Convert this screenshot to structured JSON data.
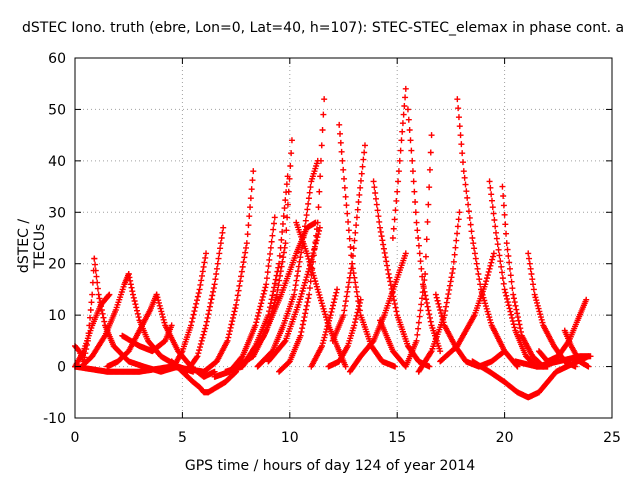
{
  "chart_data": {
    "type": "scatter",
    "title": "dSTEC Iono. truth (ebre, Lon=0, Lat=40, h=107): STEC-STEC_elemax in phase cont. a",
    "xlabel": "GPS time / hours of day 124 of year 2014",
    "ylabel": "dSTEC  / TECUs",
    "xlim": [
      0,
      25
    ],
    "ylim": [
      -10,
      60
    ],
    "xticks": [
      "0",
      "5",
      "10",
      "15",
      "20",
      "25"
    ],
    "yticks": [
      "-10",
      "0",
      "10",
      "20",
      "30",
      "40",
      "50",
      "60"
    ],
    "grid": true,
    "marker": "+",
    "color": "#ff0000",
    "series": [
      {
        "x": [
          0.0,
          0.2,
          0.4,
          0.6,
          0.8,
          0.9
        ],
        "y": [
          4,
          3,
          1,
          5,
          14,
          21
        ]
      },
      {
        "x": [
          0.9,
          1.1,
          1.4,
          1.8,
          2.5,
          3.2,
          4.0,
          4.8
        ],
        "y": [
          21,
          14,
          8,
          4,
          1,
          0,
          -1,
          0
        ]
      },
      {
        "x": [
          0.0,
          0.4,
          0.8,
          1.2,
          1.6
        ],
        "y": [
          0,
          3,
          8,
          12,
          14
        ]
      },
      {
        "x": [
          0.3,
          0.8,
          1.4,
          1.9,
          2.3,
          2.5
        ],
        "y": [
          0,
          2,
          6,
          11,
          16,
          18
        ]
      },
      {
        "x": [
          2.5,
          2.7,
          3.0,
          3.4,
          4.0,
          4.8,
          5.5
        ],
        "y": [
          18,
          14,
          9,
          5,
          2,
          0,
          -1
        ]
      },
      {
        "x": [
          1.5,
          2.0,
          2.5,
          3.0,
          3.5,
          3.8
        ],
        "y": [
          0,
          1,
          3,
          7,
          11,
          14
        ]
      },
      {
        "x": [
          3.8,
          4.2,
          4.8,
          5.4,
          6.0,
          6.5
        ],
        "y": [
          14,
          8,
          3,
          0,
          -2,
          -1
        ]
      },
      {
        "x": [
          2.2,
          3.0,
          3.6,
          4.2,
          4.5
        ],
        "y": [
          6,
          4,
          3,
          5,
          8
        ]
      },
      {
        "x": [
          4.5,
          5.0,
          5.5,
          5.8,
          6.0,
          6.2
        ],
        "y": [
          1,
          -1,
          -3,
          -4,
          -5,
          -5
        ]
      },
      {
        "x": [
          6.2,
          6.6,
          7.0,
          7.5
        ],
        "y": [
          -5,
          -4,
          -3,
          -1
        ]
      },
      {
        "x": [
          4.6,
          5.0,
          5.4,
          5.8,
          6.1
        ],
        "y": [
          0,
          3,
          8,
          15,
          22
        ]
      },
      {
        "x": [
          5.2,
          5.7,
          6.1,
          6.5,
          6.9
        ],
        "y": [
          -1,
          2,
          8,
          16,
          27
        ]
      },
      {
        "x": [
          6.0,
          6.6,
          7.1,
          7.5,
          8.0,
          8.3
        ],
        "y": [
          -1,
          1,
          5,
          12,
          24,
          38
        ]
      },
      {
        "x": [
          6.5,
          7.2,
          7.8,
          8.4,
          8.9,
          9.3
        ],
        "y": [
          -2,
          -1,
          2,
          8,
          16,
          29
        ]
      },
      {
        "x": [
          7.0,
          7.8,
          8.4,
          9.0,
          9.5,
          9.9
        ],
        "y": [
          -1,
          0,
          4,
          10,
          20,
          37
        ]
      },
      {
        "x": [
          7.5,
          8.3,
          8.9,
          9.4,
          9.8,
          10.1
        ],
        "y": [
          0,
          2,
          7,
          14,
          24,
          44
        ]
      },
      {
        "x": [
          8.5,
          9.2,
          9.7,
          10.2,
          10.6,
          11.0,
          11.3
        ],
        "y": [
          0,
          3,
          8,
          14,
          24,
          36,
          40
        ]
      },
      {
        "x": [
          9.5,
          10.0,
          10.5,
          10.9,
          11.3,
          11.6
        ],
        "y": [
          -1,
          1,
          6,
          14,
          28,
          52
        ]
      },
      {
        "x": [
          8.0,
          8.8,
          9.6,
          10.3,
          10.8,
          11.2
        ],
        "y": [
          1,
          6,
          14,
          22,
          27,
          28
        ]
      },
      {
        "x": [
          9.0,
          9.8,
          10.4,
          10.9,
          11.4
        ],
        "y": [
          1,
          5,
          12,
          19,
          27
        ]
      },
      {
        "x": [
          10.3,
          10.8,
          11.3,
          11.8,
          12.2,
          12.6
        ],
        "y": [
          28,
          22,
          15,
          8,
          4,
          0
        ]
      },
      {
        "x": [
          11.0,
          11.5,
          11.9,
          12.2
        ],
        "y": [
          0,
          4,
          10,
          15
        ]
      },
      {
        "x": [
          12.3,
          12.6,
          12.9,
          13.3,
          13.8,
          14.3,
          14.9
        ],
        "y": [
          47,
          33,
          20,
          10,
          4,
          1,
          0
        ]
      },
      {
        "x": [
          12.0,
          12.5,
          12.9,
          13.2,
          13.5
        ],
        "y": [
          5,
          10,
          20,
          32,
          43
        ]
      },
      {
        "x": [
          11.8,
          12.3,
          12.7,
          13.0,
          13.3
        ],
        "y": [
          0,
          1,
          4,
          8,
          13
        ]
      },
      {
        "x": [
          13.9,
          14.2,
          14.6,
          15.0,
          15.5,
          16.0,
          16.5
        ],
        "y": [
          36,
          27,
          18,
          10,
          4,
          1,
          0
        ]
      },
      {
        "x": [
          12.8,
          13.3,
          13.9,
          14.4,
          14.9,
          15.4
        ],
        "y": [
          -1,
          2,
          5,
          10,
          16,
          22
        ]
      },
      {
        "x": [
          14.8,
          15.0,
          15.2,
          15.4
        ],
        "y": [
          25,
          34,
          44,
          54
        ]
      },
      {
        "x": [
          15.5,
          15.7,
          15.9,
          16.2,
          16.6,
          17.0
        ],
        "y": [
          50,
          40,
          28,
          16,
          8,
          3
        ]
      },
      {
        "x": [
          14.2,
          14.8,
          15.4,
          15.9,
          16.3,
          16.6
        ],
        "y": [
          9,
          3,
          0,
          5,
          18,
          45
        ]
      },
      {
        "x": [
          16.8,
          17.2,
          17.7,
          18.2,
          18.8,
          19.4,
          20.0
        ],
        "y": [
          14,
          8,
          4,
          1,
          0,
          1,
          3
        ]
      },
      {
        "x": [
          16.0,
          16.6,
          17.2,
          17.6,
          17.9
        ],
        "y": [
          -1,
          3,
          10,
          19,
          30
        ]
      },
      {
        "x": [
          17.8,
          18.1,
          18.5,
          18.9,
          19.4,
          20.0,
          20.6
        ],
        "y": [
          52,
          38,
          25,
          15,
          8,
          3,
          0
        ]
      },
      {
        "x": [
          17.0,
          17.8,
          18.6,
          19.1,
          19.5
        ],
        "y": [
          1,
          4,
          10,
          16,
          22
        ]
      },
      {
        "x": [
          19.3,
          19.6,
          20.0,
          20.5,
          21.0,
          21.5,
          22.0
        ],
        "y": [
          36,
          26,
          15,
          7,
          2,
          0,
          0
        ]
      },
      {
        "x": [
          19.9,
          20.1,
          20.4,
          20.8,
          21.3,
          21.8,
          22.3
        ],
        "y": [
          35,
          24,
          14,
          6,
          2,
          0,
          1
        ]
      },
      {
        "x": [
          18.5,
          19.3,
          20.0,
          20.6,
          21.1,
          21.6
        ],
        "y": [
          1,
          -1,
          -3,
          -5,
          -6,
          -5
        ]
      },
      {
        "x": [
          21.6,
          22.0,
          22.4,
          22.9,
          23.4,
          23.9
        ],
        "y": [
          -5,
          -3,
          -1,
          0,
          1,
          2
        ]
      },
      {
        "x": [
          21.1,
          21.4,
          21.8,
          22.3,
          22.8,
          23.3
        ],
        "y": [
          22,
          14,
          8,
          4,
          1,
          0
        ]
      },
      {
        "x": [
          21.6,
          22.0,
          22.5,
          23.0,
          23.4,
          23.8
        ],
        "y": [
          3,
          1,
          2,
          5,
          9,
          13
        ]
      },
      {
        "x": [
          22.8,
          23.1,
          23.5,
          23.9
        ],
        "y": [
          7,
          4,
          1,
          0
        ]
      },
      {
        "x": [
          0.0,
          1.5,
          3.0,
          4.5,
          6.0
        ],
        "y": [
          0,
          -1,
          -1,
          0,
          -1
        ]
      },
      {
        "x": [
          20.5,
          21.5,
          22.5,
          23.5,
          24.0
        ],
        "y": [
          1,
          0,
          1,
          2,
          2
        ]
      }
    ]
  }
}
